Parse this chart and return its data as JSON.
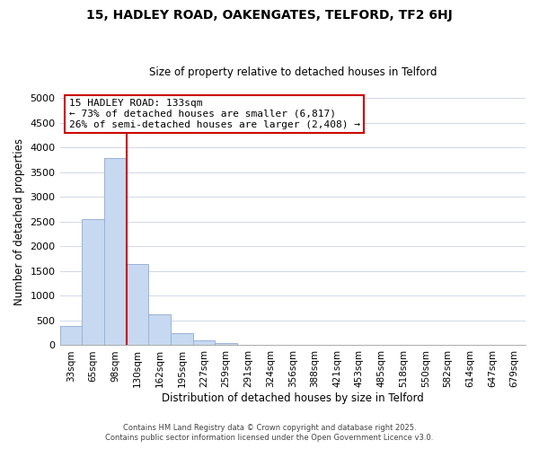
{
  "title": "15, HADLEY ROAD, OAKENGATES, TELFORD, TF2 6HJ",
  "subtitle": "Size of property relative to detached houses in Telford",
  "xlabel": "Distribution of detached houses by size in Telford",
  "ylabel": "Number of detached properties",
  "bar_labels": [
    "33sqm",
    "65sqm",
    "98sqm",
    "130sqm",
    "162sqm",
    "195sqm",
    "227sqm",
    "259sqm",
    "291sqm",
    "324sqm",
    "356sqm",
    "388sqm",
    "421sqm",
    "453sqm",
    "485sqm",
    "518sqm",
    "550sqm",
    "582sqm",
    "614sqm",
    "647sqm",
    "679sqm"
  ],
  "bar_values": [
    390,
    2550,
    3780,
    1650,
    620,
    240,
    100,
    45,
    0,
    0,
    0,
    0,
    0,
    0,
    0,
    0,
    0,
    0,
    0,
    0,
    0
  ],
  "bar_color": "#c6d9f1",
  "bar_edge_color": "#9ab3d5",
  "ylim": [
    0,
    5000
  ],
  "yticks": [
    0,
    500,
    1000,
    1500,
    2000,
    2500,
    3000,
    3500,
    4000,
    4500,
    5000
  ],
  "vline_color": "#cc0000",
  "vline_bar_index": 3,
  "annotation_title": "15 HADLEY ROAD: 133sqm",
  "annotation_line1": "← 73% of detached houses are smaller (6,817)",
  "annotation_line2": "26% of semi-detached houses are larger (2,408) →",
  "annotation_box_color": "#ffffff",
  "annotation_box_edge_color": "#cc0000",
  "footer1": "Contains HM Land Registry data © Crown copyright and database right 2025.",
  "footer2": "Contains public sector information licensed under the Open Government Licence v3.0.",
  "background_color": "#ffffff",
  "grid_color": "#d0d8e8"
}
